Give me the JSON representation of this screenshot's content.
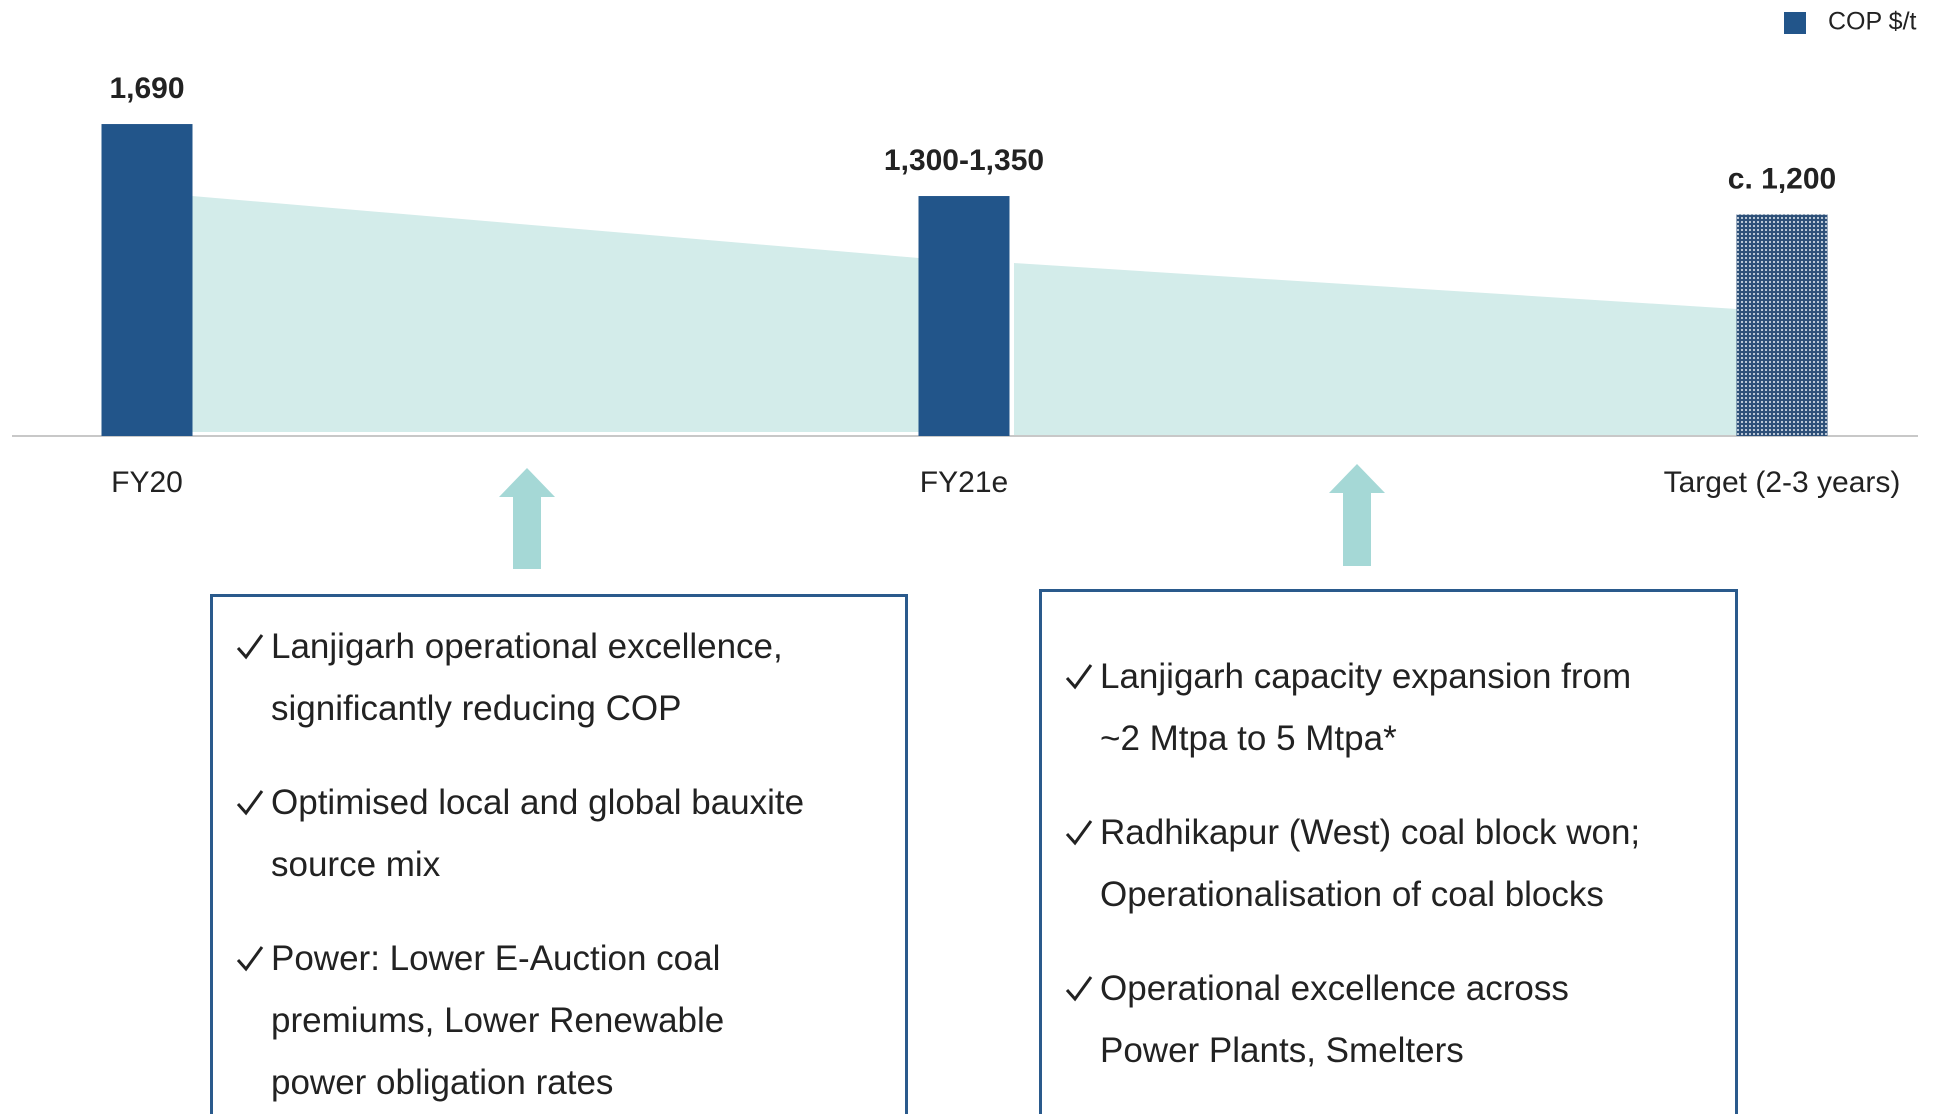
{
  "chart_data": {
    "type": "bar",
    "categories": [
      "FY20",
      "FY21e",
      "Target (2-3 years)"
    ],
    "series": [
      {
        "name": "COP $/t",
        "color": "#22558a",
        "values": [
          1690,
          1300,
          1200
        ],
        "value_labels": [
          "1,690",
          "1,300-1,350",
          "c. 1,200"
        ],
        "patterned": [
          false,
          false,
          true
        ]
      }
    ],
    "ylim": [
      0,
      1700
    ],
    "legend": "top-right",
    "annotations": [
      {
        "items": [
          [
            "Lanjigarh operational excellence,",
            "significantly reducing COP"
          ],
          [
            "Optimised local and global bauxite",
            "source mix"
          ],
          [
            "Power: Lower E-Auction coal",
            "premiums, Lower Renewable",
            "power obligation rates"
          ]
        ]
      },
      {
        "items": [
          [
            "Lanjigarh capacity expansion from",
            "~2 Mtpa to 5 Mtpa*"
          ],
          [
            "Radhikapur (West) coal block won;",
            "Operationalisation of coal blocks"
          ],
          [
            "Operational excellence across",
            "Power Plants, Smelters"
          ]
        ]
      }
    ]
  }
}
